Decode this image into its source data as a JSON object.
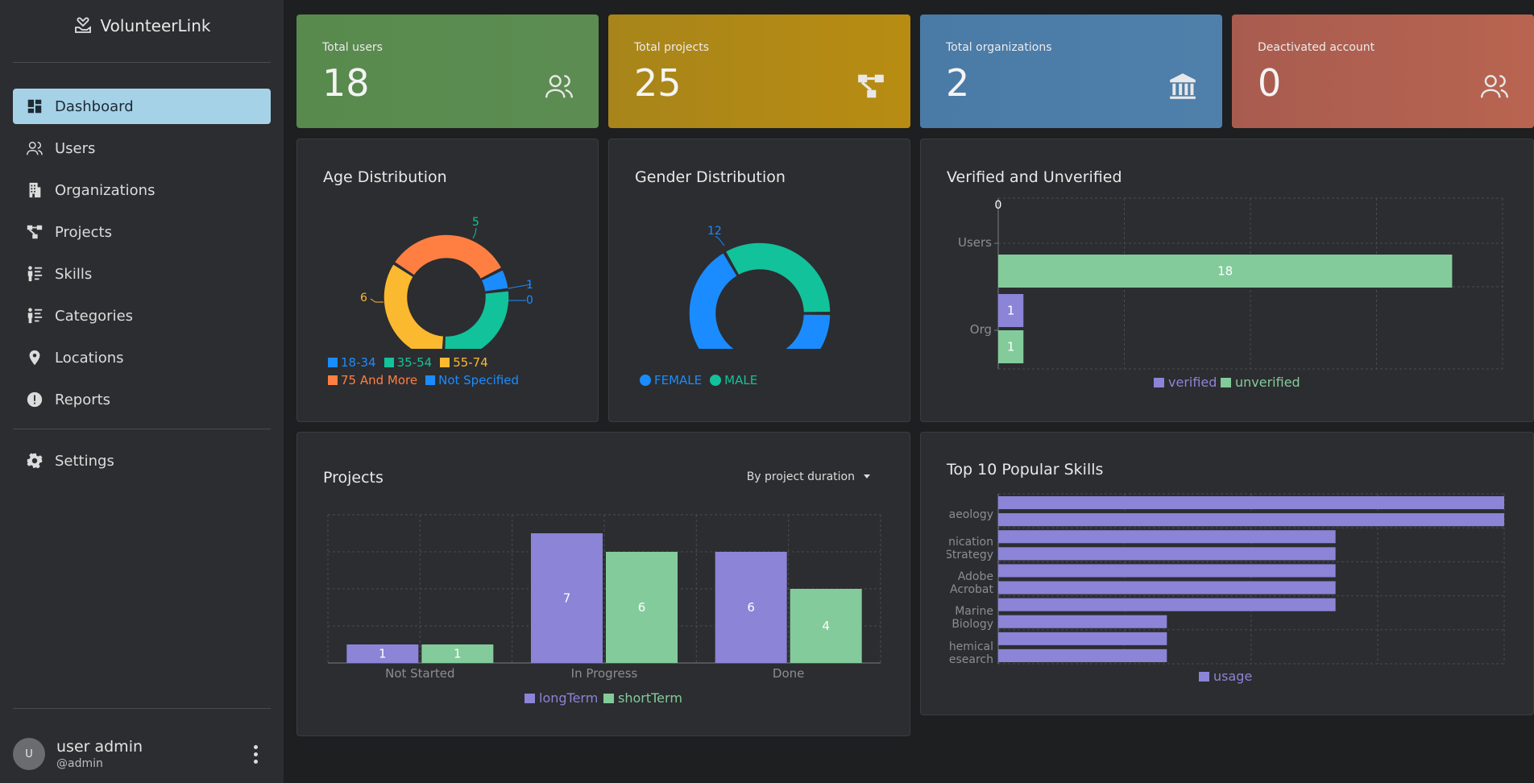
{
  "app": {
    "name": "VolunteerLink"
  },
  "sidebar": {
    "items": [
      {
        "label": "Dashboard"
      },
      {
        "label": "Users"
      },
      {
        "label": "Organizations"
      },
      {
        "label": "Projects"
      },
      {
        "label": "Skills"
      },
      {
        "label": "Categories"
      },
      {
        "label": "Locations"
      },
      {
        "label": "Reports"
      },
      {
        "label": "Settings"
      }
    ],
    "user": {
      "avatar_letter": "U",
      "name": "user admin",
      "handle": "@admin"
    }
  },
  "stats": [
    {
      "label": "Total users",
      "value": "18",
      "color": "#5a8a4f",
      "icon": "users-icon"
    },
    {
      "label": "Total projects",
      "value": "25",
      "color": "#b38a14",
      "icon": "hierarchy-icon"
    },
    {
      "label": "Total organizations",
      "value": "2",
      "color": "#4a7aa7",
      "icon": "building-columns-icon"
    },
    {
      "label": "Deactivated account",
      "value": "0",
      "color": "#b06050",
      "icon": "users-icon"
    }
  ],
  "panels": {
    "age": {
      "title": "Age Distribution"
    },
    "gender": {
      "title": "Gender Distribution"
    },
    "verified": {
      "title": "Verified and Unverified"
    },
    "projects": {
      "title": "Projects",
      "dropdown_value": "By project duration"
    },
    "skills": {
      "title": "Top 10 Popular Skills"
    }
  },
  "chart_data": [
    {
      "type": "pie",
      "title": "Age Distribution",
      "categories": [
        "18-34",
        "35-54",
        "55-74",
        "75 And More",
        "Not Specified"
      ],
      "values": [
        1,
        5,
        6,
        6,
        0
      ],
      "colors": [
        "#1a8cff",
        "#12c29b",
        "#fbb92f",
        "#ff7f42",
        "#1a8cff"
      ]
    },
    {
      "type": "pie",
      "title": "Gender Distribution",
      "categories": [
        "FEMALE",
        "MALE"
      ],
      "values": [
        12,
        6
      ],
      "colors": [
        "#1a8cff",
        "#12c29b"
      ]
    },
    {
      "type": "bar",
      "title": "Verified and Unverified",
      "categories": [
        "Users",
        "Org"
      ],
      "series": [
        {
          "name": "verified",
          "values": [
            0,
            1
          ]
        },
        {
          "name": "unverified",
          "values": [
            18,
            1
          ]
        }
      ],
      "colors": [
        "#8b84d7",
        "#83cb9b"
      ]
    },
    {
      "type": "bar",
      "title": "Projects",
      "categories": [
        "Not Started",
        "In Progress",
        "Done"
      ],
      "series": [
        {
          "name": "longTerm",
          "values": [
            1,
            7,
            6
          ]
        },
        {
          "name": "shortTerm",
          "values": [
            1,
            6,
            4
          ]
        }
      ],
      "colors": [
        "#8b84d7",
        "#83cb9b"
      ],
      "ylim": [
        0,
        8
      ]
    },
    {
      "type": "bar",
      "title": "Top 10 Popular Skills",
      "series": [
        {
          "name": "usage",
          "values": [
            3,
            3,
            2,
            2,
            2,
            2,
            2,
            1,
            1,
            1
          ]
        }
      ],
      "tick_labels": [
        "aeology",
        "nication Strategy",
        "Adobe Acrobat",
        "Marine Biology",
        "hemical esearch"
      ],
      "colors": [
        "#8b84d7"
      ],
      "xlim": [
        0,
        3
      ]
    }
  ]
}
